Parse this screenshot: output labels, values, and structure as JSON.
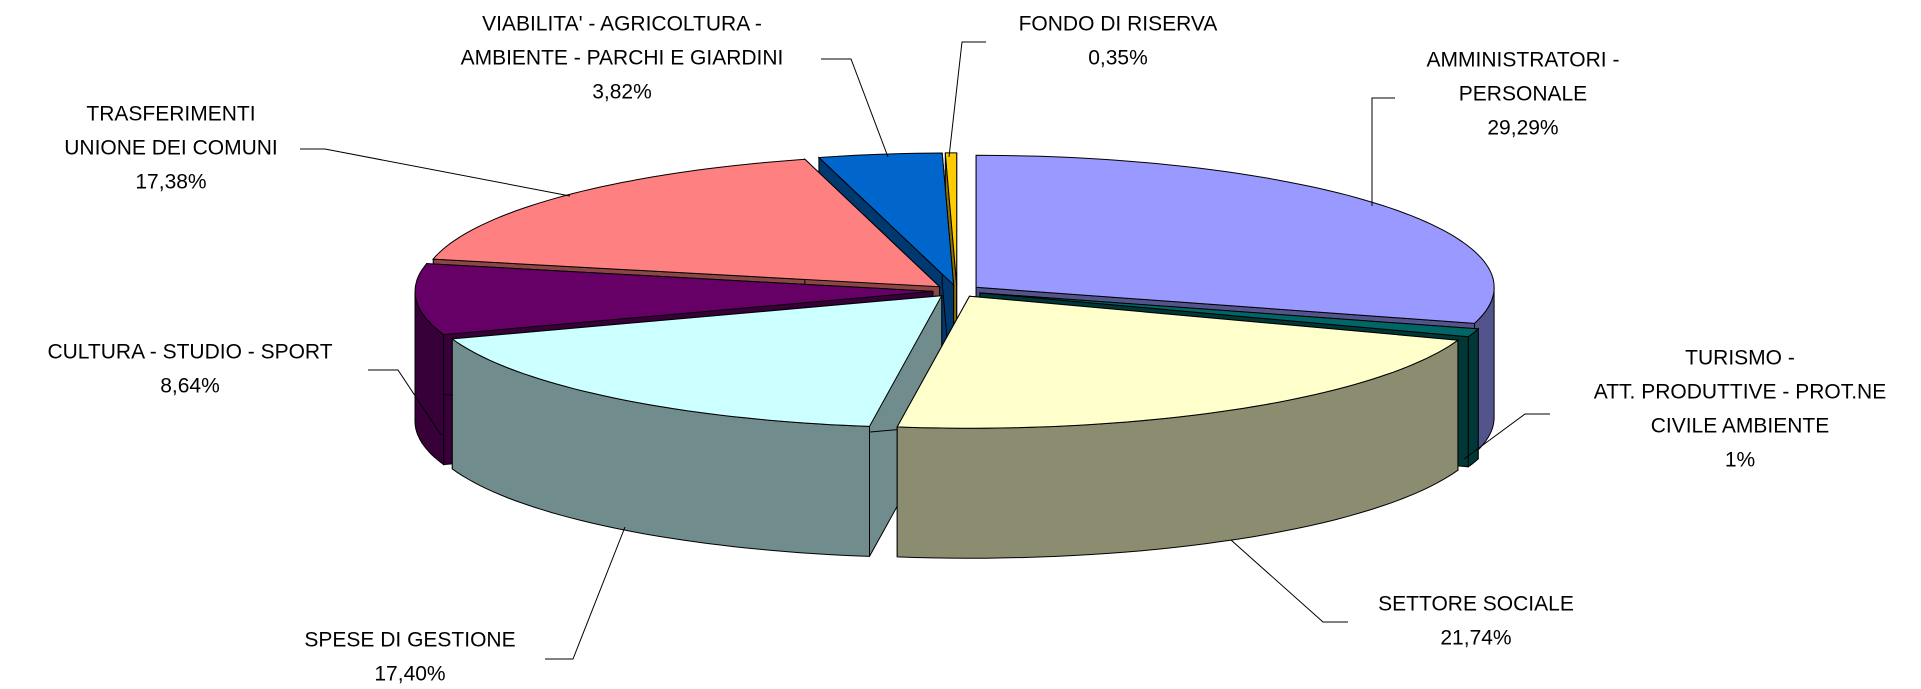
{
  "chart_data": {
    "type": "pie3d",
    "categories": [
      [
        "AMMINISTRATORI -",
        "PERSONALE"
      ],
      [
        "TURISMO -",
        "ATT. PRODUTTIVE - PROT.NE",
        "CIVILE  AMBIENTE"
      ],
      [
        "SETTORE SOCIALE"
      ],
      [
        "SPESE DI GESTIONE"
      ],
      [
        "CULTURA - STUDIO - SPORT"
      ],
      [
        "TRASFERIMENTI",
        "UNIONE DEI COMUNI"
      ],
      [
        "VIABILITA' - AGRICOLTURA -",
        "AMBIENTE - PARCHI E GIARDINI"
      ],
      [
        "FONDO DI RISERVA"
      ]
    ],
    "values": [
      29.29,
      1,
      21.74,
      17.4,
      8.64,
      17.38,
      3.82,
      0.35
    ],
    "value_labels": [
      "29,29%",
      "1%",
      "21,74%",
      "17,40%",
      "8,64%",
      "17,38%",
      "3,82%",
      "0,35%"
    ],
    "colors": [
      "#9999ff",
      "#006666",
      "#ffffcc",
      "#ccffff",
      "#660066",
      "#ff8080",
      "#0066cc",
      "#ffcc00"
    ]
  }
}
